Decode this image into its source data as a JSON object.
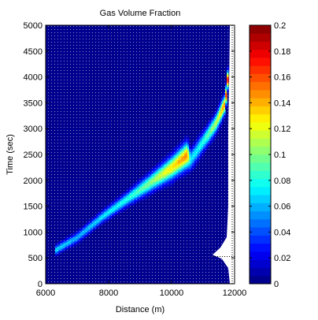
{
  "chart_data": {
    "type": "heatmap",
    "title": "Gas Volume Fraction",
    "xlabel": "Distance (m)",
    "ylabel": "Time (sec)",
    "xlim": [
      6000,
      12000
    ],
    "ylim": [
      0,
      5000
    ],
    "xticks": [
      6000,
      8000,
      10000,
      12000
    ],
    "xtick_labels": [
      "6000",
      "8000",
      "10000",
      "12000"
    ],
    "yticks": [
      0,
      500,
      1000,
      1500,
      2000,
      2500,
      3000,
      3500,
      4000,
      4500,
      5000
    ],
    "ytick_labels": [
      "0",
      "500",
      "1000",
      "1500",
      "2000",
      "2500",
      "3000",
      "3500",
      "4000",
      "4500",
      "5000"
    ],
    "colorbar": {
      "lim": [
        0,
        0.2
      ],
      "ticks": [
        0,
        0.02,
        0.04,
        0.06,
        0.08,
        0.1,
        0.12,
        0.14,
        0.16,
        0.18,
        0.2
      ],
      "tick_labels": [
        "0",
        "0.02",
        "0.04",
        "0.06",
        "0.08",
        "0.1",
        "0.12",
        "0.14",
        "0.16",
        "0.18",
        "0.2"
      ],
      "colormap": "jet"
    },
    "background_value": 0.0,
    "domain_right_boundary": {
      "description": "right edge of computed field (distance, time)",
      "points": [
        [
          11850,
          0
        ],
        [
          11800,
          300
        ],
        [
          11600,
          480
        ],
        [
          11300,
          560
        ],
        [
          11550,
          700
        ],
        [
          11750,
          900
        ],
        [
          11800,
          1500
        ],
        [
          11800,
          3000
        ],
        [
          11830,
          4000
        ],
        [
          11850,
          5000
        ]
      ]
    },
    "dotted_reference": {
      "points": [
        [
          11300,
          525
        ],
        [
          12000,
          525
        ]
      ],
      "vertical_x": 12000,
      "vertical_range": [
        0,
        5000
      ]
    },
    "gas_band": {
      "ridge": [
        [
          6300,
          650
        ],
        [
          7000,
          900
        ],
        [
          7800,
          1300
        ],
        [
          8600,
          1650
        ],
        [
          9300,
          1950
        ],
        [
          10000,
          2250
        ],
        [
          10500,
          2500
        ],
        [
          10600,
          2400
        ],
        [
          11000,
          2750
        ],
        [
          11400,
          3100
        ],
        [
          11700,
          3500
        ],
        [
          11800,
          4100
        ]
      ],
      "peak_values": [
        0.07,
        0.06,
        0.07,
        0.08,
        0.1,
        0.13,
        0.15,
        0.07,
        0.08,
        0.11,
        0.15,
        0.18
      ],
      "band_width_time": [
        80,
        90,
        100,
        120,
        160,
        200,
        230,
        180,
        170,
        160,
        160,
        150
      ]
    }
  }
}
